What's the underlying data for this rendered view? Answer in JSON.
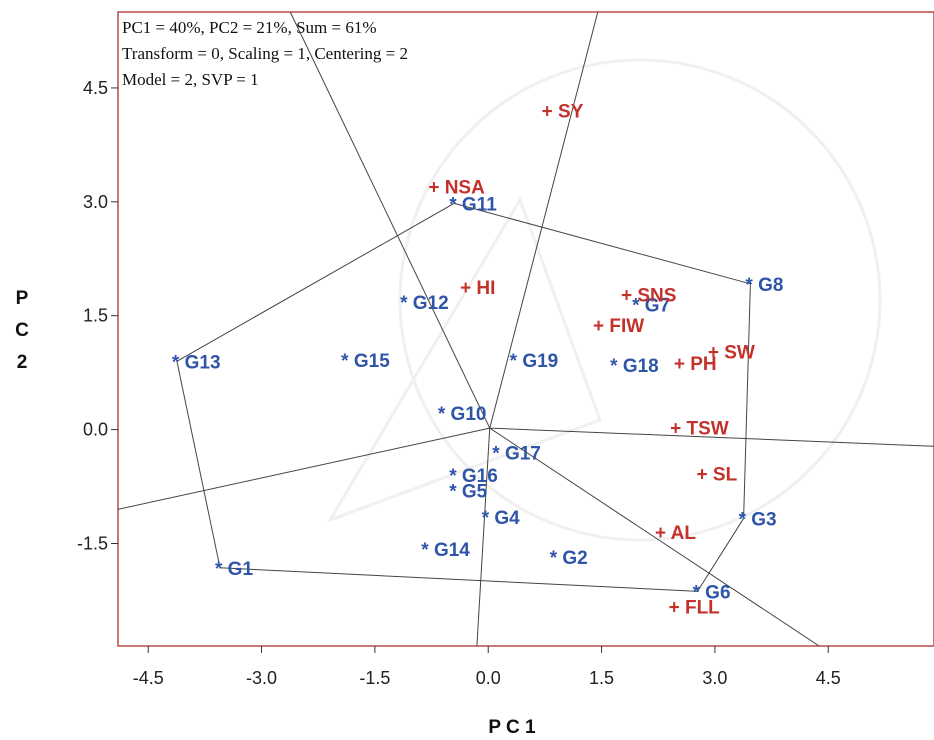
{
  "chart_data": {
    "type": "scatter",
    "subtype": "GGE biplot (which-won-where polygon view)",
    "info_lines": [
      "PC1 = 40%, PC2 = 21%, Sum = 61%",
      "Transform = 0, Scaling = 1, Centering = 2",
      "Model = 2, SVP = 1"
    ],
    "xlabel": "P C 1",
    "ylabel": [
      "P",
      "C",
      "2"
    ],
    "xlim": [
      -4.9,
      5.9
    ],
    "ylim": [
      -2.85,
      5.5
    ],
    "xticks": [
      -4.5,
      -3.0,
      -1.5,
      0.0,
      1.5,
      3.0,
      4.5
    ],
    "xtick_labels": [
      "-4.5",
      "-3.0",
      "-1.5",
      "0.0",
      "1.5",
      "3.0",
      "4.5"
    ],
    "yticks": [
      -1.5,
      0.0,
      1.5,
      3.0,
      4.5
    ],
    "ytick_labels": [
      "-1.5",
      "0.0",
      "1.5",
      "3.0",
      "4.5"
    ],
    "grid": false,
    "colors": {
      "genotype": "#2f55a8",
      "trait": "#c4312b",
      "lines": "#444444",
      "frame": "#b03030"
    },
    "genotypes": [
      {
        "label": "G1",
        "x": -3.55,
        "y": -1.82
      },
      {
        "label": "G2",
        "x": 0.88,
        "y": -1.68
      },
      {
        "label": "G3",
        "x": 3.38,
        "y": -1.17
      },
      {
        "label": "G4",
        "x": -0.02,
        "y": -1.15
      },
      {
        "label": "G5",
        "x": -0.45,
        "y": -0.8
      },
      {
        "label": "G6",
        "x": 2.77,
        "y": -2.13
      },
      {
        "label": "G7",
        "x": 1.97,
        "y": 1.65
      },
      {
        "label": "G8",
        "x": 3.47,
        "y": 1.92
      },
      {
        "label": "G10",
        "x": -0.6,
        "y": 0.22
      },
      {
        "label": "G11",
        "x": -0.45,
        "y": 2.98
      },
      {
        "label": "G12",
        "x": -1.1,
        "y": 1.68
      },
      {
        "label": "G13",
        "x": -4.12,
        "y": 0.9
      },
      {
        "label": "G14",
        "x": -0.82,
        "y": -1.57
      },
      {
        "label": "G15",
        "x": -1.88,
        "y": 0.92
      },
      {
        "label": "G16",
        "x": -0.45,
        "y": -0.6
      },
      {
        "label": "G17",
        "x": 0.12,
        "y": -0.3
      },
      {
        "label": "G18",
        "x": 1.68,
        "y": 0.85
      },
      {
        "label": "G19",
        "x": 0.35,
        "y": 0.92
      }
    ],
    "traits": [
      {
        "label": "SY",
        "x": 0.8,
        "y": 4.2
      },
      {
        "label": "NSA",
        "x": -0.7,
        "y": 3.2
      },
      {
        "label": "HI",
        "x": -0.28,
        "y": 1.88
      },
      {
        "label": "SNS",
        "x": 1.85,
        "y": 1.78
      },
      {
        "label": "FIW",
        "x": 1.48,
        "y": 1.38
      },
      {
        "label": "SW",
        "x": 3.0,
        "y": 1.03
      },
      {
        "label": "PH",
        "x": 2.55,
        "y": 0.88
      },
      {
        "label": "TSW",
        "x": 2.5,
        "y": 0.03
      },
      {
        "label": "SL",
        "x": 2.85,
        "y": -0.58
      },
      {
        "label": "AL",
        "x": 2.3,
        "y": -1.35
      },
      {
        "label": "FLL",
        "x": 2.48,
        "y": -2.33
      }
    ],
    "polygon_vertices": [
      "G13",
      "G11",
      "G8",
      "G3",
      "G6",
      "G1"
    ],
    "origin": {
      "x": 0.02,
      "y": 0.02
    },
    "rays": [
      {
        "x": -2.62,
        "y": 5.5
      },
      {
        "x": 1.45,
        "y": 5.5
      },
      {
        "x": 5.9,
        "y": -0.22
      },
      {
        "x": 4.38,
        "y": -2.85
      },
      {
        "x": -0.15,
        "y": -2.85
      },
      {
        "x": -4.9,
        "y": -1.05
      }
    ]
  }
}
